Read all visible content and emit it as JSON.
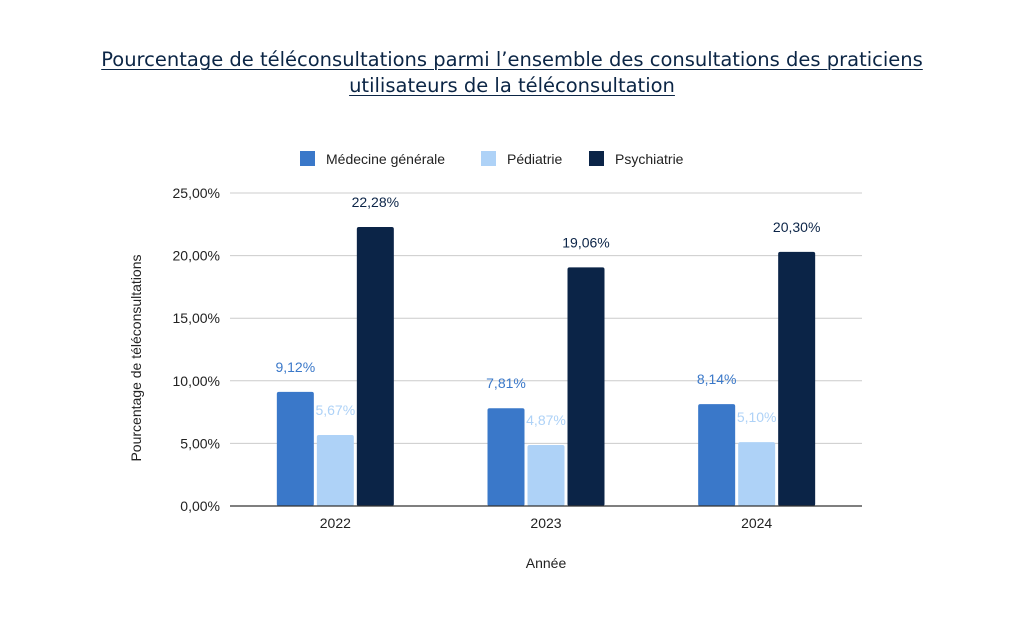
{
  "chart_data": {
    "type": "bar",
    "title": "Pourcentage de téléconsultations parmi l’ensemble des consultations des praticiens utilisateurs de la téléconsultation",
    "title_lines": [
      "Pourcentage de téléconsultations parmi l’ensemble des consultations des praticiens",
      "utilisateurs de la téléconsultation"
    ],
    "xlabel": "Année",
    "ylabel": "Pourcentage de téléconsultations",
    "categories": [
      "2022",
      "2023",
      "2024"
    ],
    "series": [
      {
        "name": "Médecine générale",
        "values": [
          9.12,
          7.81,
          8.14
        ],
        "labels": [
          "9,12%",
          "7,81%",
          "8,14%"
        ],
        "color": "#3a78c9"
      },
      {
        "name": "Pédiatrie",
        "values": [
          5.67,
          4.87,
          5.1
        ],
        "labels": [
          "5,67%",
          "4,87%",
          "5,10%"
        ],
        "color": "#aed2f7"
      },
      {
        "name": "Psychiatrie",
        "values": [
          22.28,
          19.06,
          20.3
        ],
        "labels": [
          "22,28%",
          "19,06%",
          "20,30%"
        ],
        "color": "#0b2447"
      }
    ],
    "ylim": [
      0,
      25
    ],
    "yticks": [
      0,
      5,
      10,
      15,
      20,
      25
    ],
    "ytick_labels": [
      "0,00%",
      "5,00%",
      "10,00%",
      "15,00%",
      "20,00%",
      "25,00%"
    ],
    "grid": true,
    "legend_position": "top"
  },
  "colors": {
    "title": "#0b2545",
    "grid": "#cccccc",
    "axis": "#333333",
    "text": "#222222"
  }
}
